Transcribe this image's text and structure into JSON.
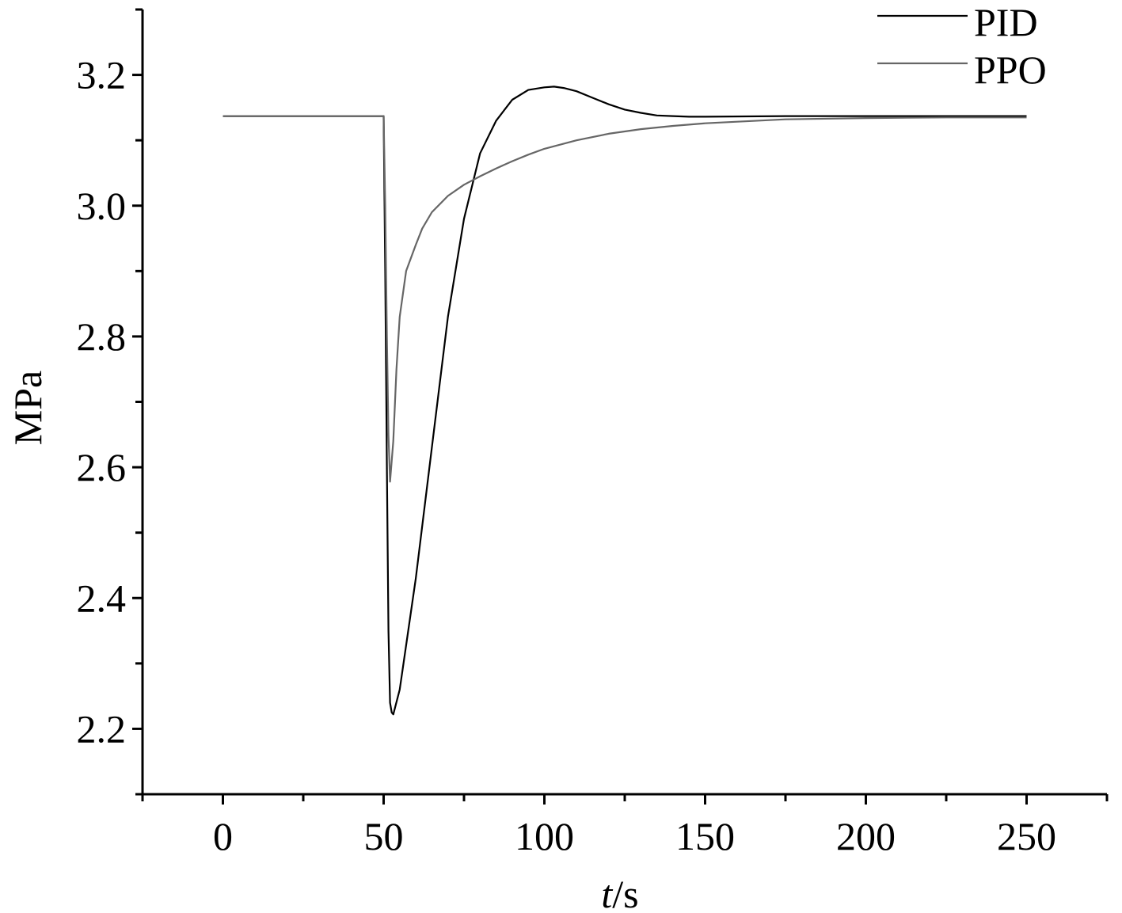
{
  "chart_data": {
    "type": "line",
    "title": "",
    "xlabel_italic": "t",
    "xlabel_rest": "/s",
    "ylabel": "MPa",
    "xlim": [
      -25,
      275
    ],
    "ylim": [
      2.1,
      3.3
    ],
    "x_ticks": [
      0,
      50,
      100,
      150,
      200,
      250
    ],
    "x_tick_labels": [
      "0",
      "50",
      "100",
      "150",
      "200",
      "250"
    ],
    "x_minor_ticks": [
      -25,
      25,
      75,
      125,
      175,
      225,
      275
    ],
    "y_ticks": [
      2.2,
      2.4,
      2.6,
      2.8,
      3.0,
      3.2
    ],
    "y_tick_labels": [
      "2.2",
      "2.4",
      "2.6",
      "2.8",
      "3.0",
      "3.2"
    ],
    "y_minor_ticks": [
      2.1,
      2.3,
      2.5,
      2.7,
      2.9,
      3.1,
      3.3
    ],
    "grid": false,
    "legend_position": "top-right",
    "series": [
      {
        "name": "PID",
        "color": "#000000",
        "x": [
          0,
          50,
          50.5,
          51,
          51.5,
          52,
          52.5,
          53,
          55,
          60,
          65,
          70,
          75,
          80,
          85,
          90,
          95,
          100,
          103,
          106,
          110,
          115,
          120,
          125,
          130,
          135,
          140,
          145,
          150,
          175,
          200,
          225,
          250
        ],
        "y": [
          3.137,
          3.137,
          2.9,
          2.6,
          2.35,
          2.24,
          2.225,
          2.222,
          2.26,
          2.43,
          2.63,
          2.83,
          2.98,
          3.08,
          3.13,
          3.162,
          3.177,
          3.181,
          3.182,
          3.18,
          3.175,
          3.165,
          3.155,
          3.147,
          3.142,
          3.138,
          3.137,
          3.136,
          3.136,
          3.137,
          3.137,
          3.137,
          3.137
        ]
      },
      {
        "name": "PPO",
        "color": "#666666",
        "x": [
          0,
          50,
          50.5,
          51,
          51.5,
          52,
          53,
          54,
          55,
          57,
          60,
          62,
          65,
          70,
          75,
          80,
          85,
          90,
          95,
          100,
          110,
          120,
          130,
          140,
          150,
          175,
          200,
          225,
          250
        ],
        "y": [
          3.137,
          3.137,
          3.0,
          2.8,
          2.65,
          2.578,
          2.64,
          2.75,
          2.83,
          2.9,
          2.94,
          2.965,
          2.99,
          3.015,
          3.032,
          3.045,
          3.057,
          3.068,
          3.078,
          3.087,
          3.1,
          3.11,
          3.117,
          3.122,
          3.126,
          3.132,
          3.134,
          3.135,
          3.135
        ]
      }
    ]
  }
}
